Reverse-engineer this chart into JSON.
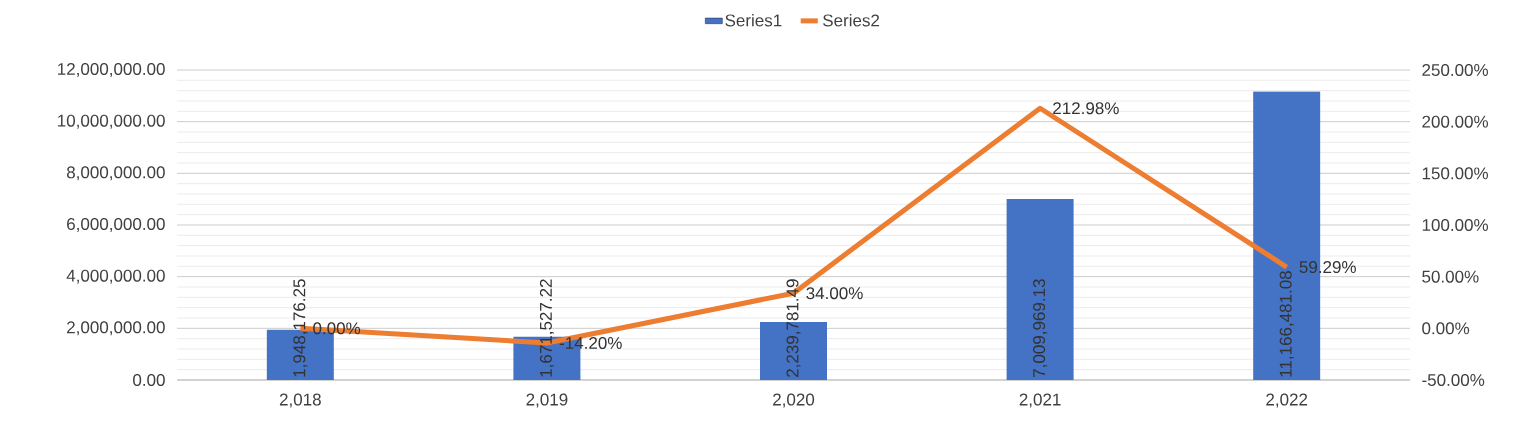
{
  "chart_data": {
    "type": "bar",
    "categories": [
      "2,018",
      "2,019",
      "2,020",
      "2,021",
      "2,022"
    ],
    "series": [
      {
        "name": "Series1",
        "color": "#4472c4",
        "values": [
          1948176.25,
          1671527.22,
          2239781.49,
          7009969.13,
          11166481.08
        ],
        "value_labels": [
          "1,948,176.25",
          "1,671,527.22",
          "2,239,781.49",
          "7,009,969.13",
          "11,166,481.08"
        ]
      },
      {
        "name": "Series2",
        "type": "line",
        "axis": "y2",
        "color": "#ed7d31",
        "values": [
          0,
          -14.2,
          34,
          212.98,
          59.29
        ],
        "value_labels": [
          "0.00%",
          "-14.20%",
          "34.00%",
          "212.98%",
          "59.29%"
        ]
      }
    ],
    "ylim": [
      0,
      12000000
    ],
    "yticks": [
      {
        "value": 0,
        "label": "0.00"
      },
      {
        "value": 2000000,
        "label": "2,000,000.00"
      },
      {
        "value": 4000000,
        "label": "4,000,000.00"
      },
      {
        "value": 6000000,
        "label": "6,000,000.00"
      },
      {
        "value": 8000000,
        "label": "8,000,000.00"
      },
      {
        "value": 10000000,
        "label": "10,000,000.00"
      },
      {
        "value": 12000000,
        "label": "12,000,000.00"
      }
    ],
    "y2lim": [
      -50,
      250
    ],
    "y2ticks": [
      {
        "value": -50,
        "label": "-50.00%"
      },
      {
        "value": 0,
        "label": "0.00%"
      },
      {
        "value": 50,
        "label": "50.00%"
      },
      {
        "value": 100,
        "label": "100.00%"
      },
      {
        "value": 150,
        "label": "150.00%"
      },
      {
        "value": 200,
        "label": "200.00%"
      },
      {
        "value": 250,
        "label": "250.00%"
      }
    ],
    "grid": "y",
    "legend": "top"
  }
}
